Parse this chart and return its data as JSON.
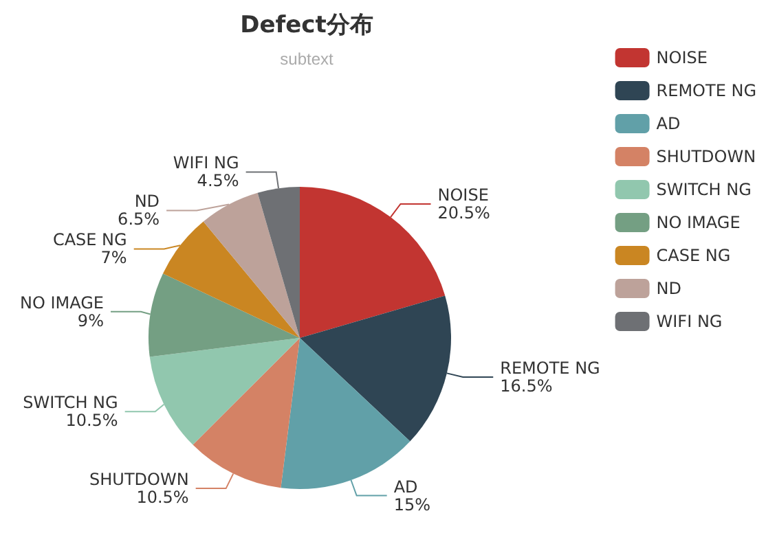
{
  "chart_data": {
    "type": "pie",
    "title": "Defect分布",
    "subtitle": "subtext",
    "categories": [
      "NOISE",
      "REMOTE NG",
      "AD",
      "SHUTDOWN",
      "SWITCH NG",
      "NO IMAGE",
      "CASE NG",
      "ND",
      "WIFI NG"
    ],
    "values": [
      20.5,
      16.5,
      15,
      10.5,
      10.5,
      9,
      7,
      6.5,
      4.5
    ],
    "value_labels": [
      "20.5%",
      "16.5%",
      "15%",
      "10.5%",
      "10.5%",
      "9%",
      "7%",
      "6.5%",
      "4.5%"
    ],
    "colors": [
      "#c23531",
      "#2f4554",
      "#61a0a8",
      "#d48265",
      "#91c7ae",
      "#749f83",
      "#ca8622",
      "#bda29a",
      "#6e7074"
    ],
    "legend": "right"
  }
}
